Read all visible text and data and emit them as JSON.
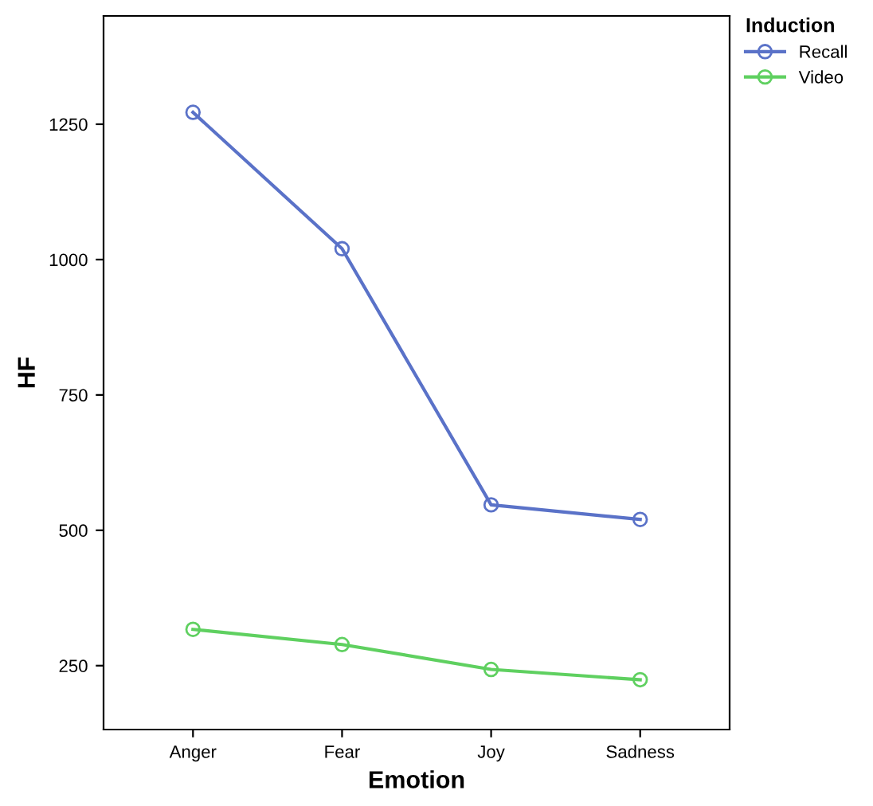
{
  "chart_data": {
    "type": "line",
    "xlabel": "Emotion",
    "ylabel": "HF",
    "legend_title": "Induction",
    "categories": [
      "Anger",
      "Fear",
      "Joy",
      "Sadness"
    ],
    "series": [
      {
        "name": "Recall",
        "color": "#5a72c8",
        "values": [
          1272,
          1020,
          547,
          520
        ]
      },
      {
        "name": "Video",
        "color": "#5fd060",
        "values": [
          317,
          289,
          243,
          224
        ]
      }
    ],
    "ylim": [
      132,
      1450
    ],
    "yticks": [
      250,
      500,
      750,
      1000,
      1250
    ],
    "grid": false,
    "legend": "top right",
    "marker": "circle",
    "line_style": "solid"
  }
}
